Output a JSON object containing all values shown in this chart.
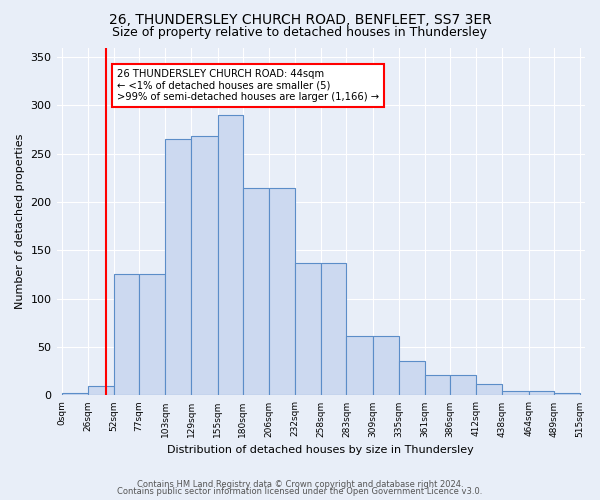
{
  "title": "26, THUNDERSLEY CHURCH ROAD, BENFLEET, SS7 3ER",
  "subtitle": "Size of property relative to detached houses in Thundersley",
  "xlabel": "Distribution of detached houses by size in Thundersley",
  "ylabel": "Number of detached properties",
  "bar_edges": [
    0,
    26,
    52,
    77,
    103,
    129,
    155,
    180,
    206,
    232,
    258,
    283,
    309,
    335,
    361,
    386,
    412,
    438,
    464,
    489,
    515
  ],
  "bar_heights": [
    3,
    10,
    126,
    126,
    265,
    268,
    290,
    215,
    215,
    137,
    137,
    62,
    62,
    36,
    21,
    21,
    12,
    5,
    5,
    2
  ],
  "bar_color": "#ccd9f0",
  "bar_edge_color": "#5b8dc8",
  "red_line_x": 44,
  "annotation_text": "26 THUNDERSLEY CHURCH ROAD: 44sqm\n← <1% of detached houses are smaller (5)\n>99% of semi-detached houses are larger (1,166) →",
  "annotation_box_color": "white",
  "annotation_box_edge": "red",
  "footer_line1": "Contains HM Land Registry data © Crown copyright and database right 2024.",
  "footer_line2": "Contains public sector information licensed under the Open Government Licence v3.0.",
  "background_color": "#e8eef8",
  "plot_bg_color": "#e8eef8",
  "title_fontsize": 10,
  "subtitle_fontsize": 9,
  "tick_labels": [
    "0sqm",
    "26sqm",
    "52sqm",
    "77sqm",
    "103sqm",
    "129sqm",
    "155sqm",
    "180sqm",
    "206sqm",
    "232sqm",
    "258sqm",
    "283sqm",
    "309sqm",
    "335sqm",
    "361sqm",
    "386sqm",
    "412sqm",
    "438sqm",
    "464sqm",
    "489sqm",
    "515sqm"
  ],
  "ylim": [
    0,
    360
  ],
  "yticks": [
    0,
    50,
    100,
    150,
    200,
    250,
    300,
    350
  ]
}
